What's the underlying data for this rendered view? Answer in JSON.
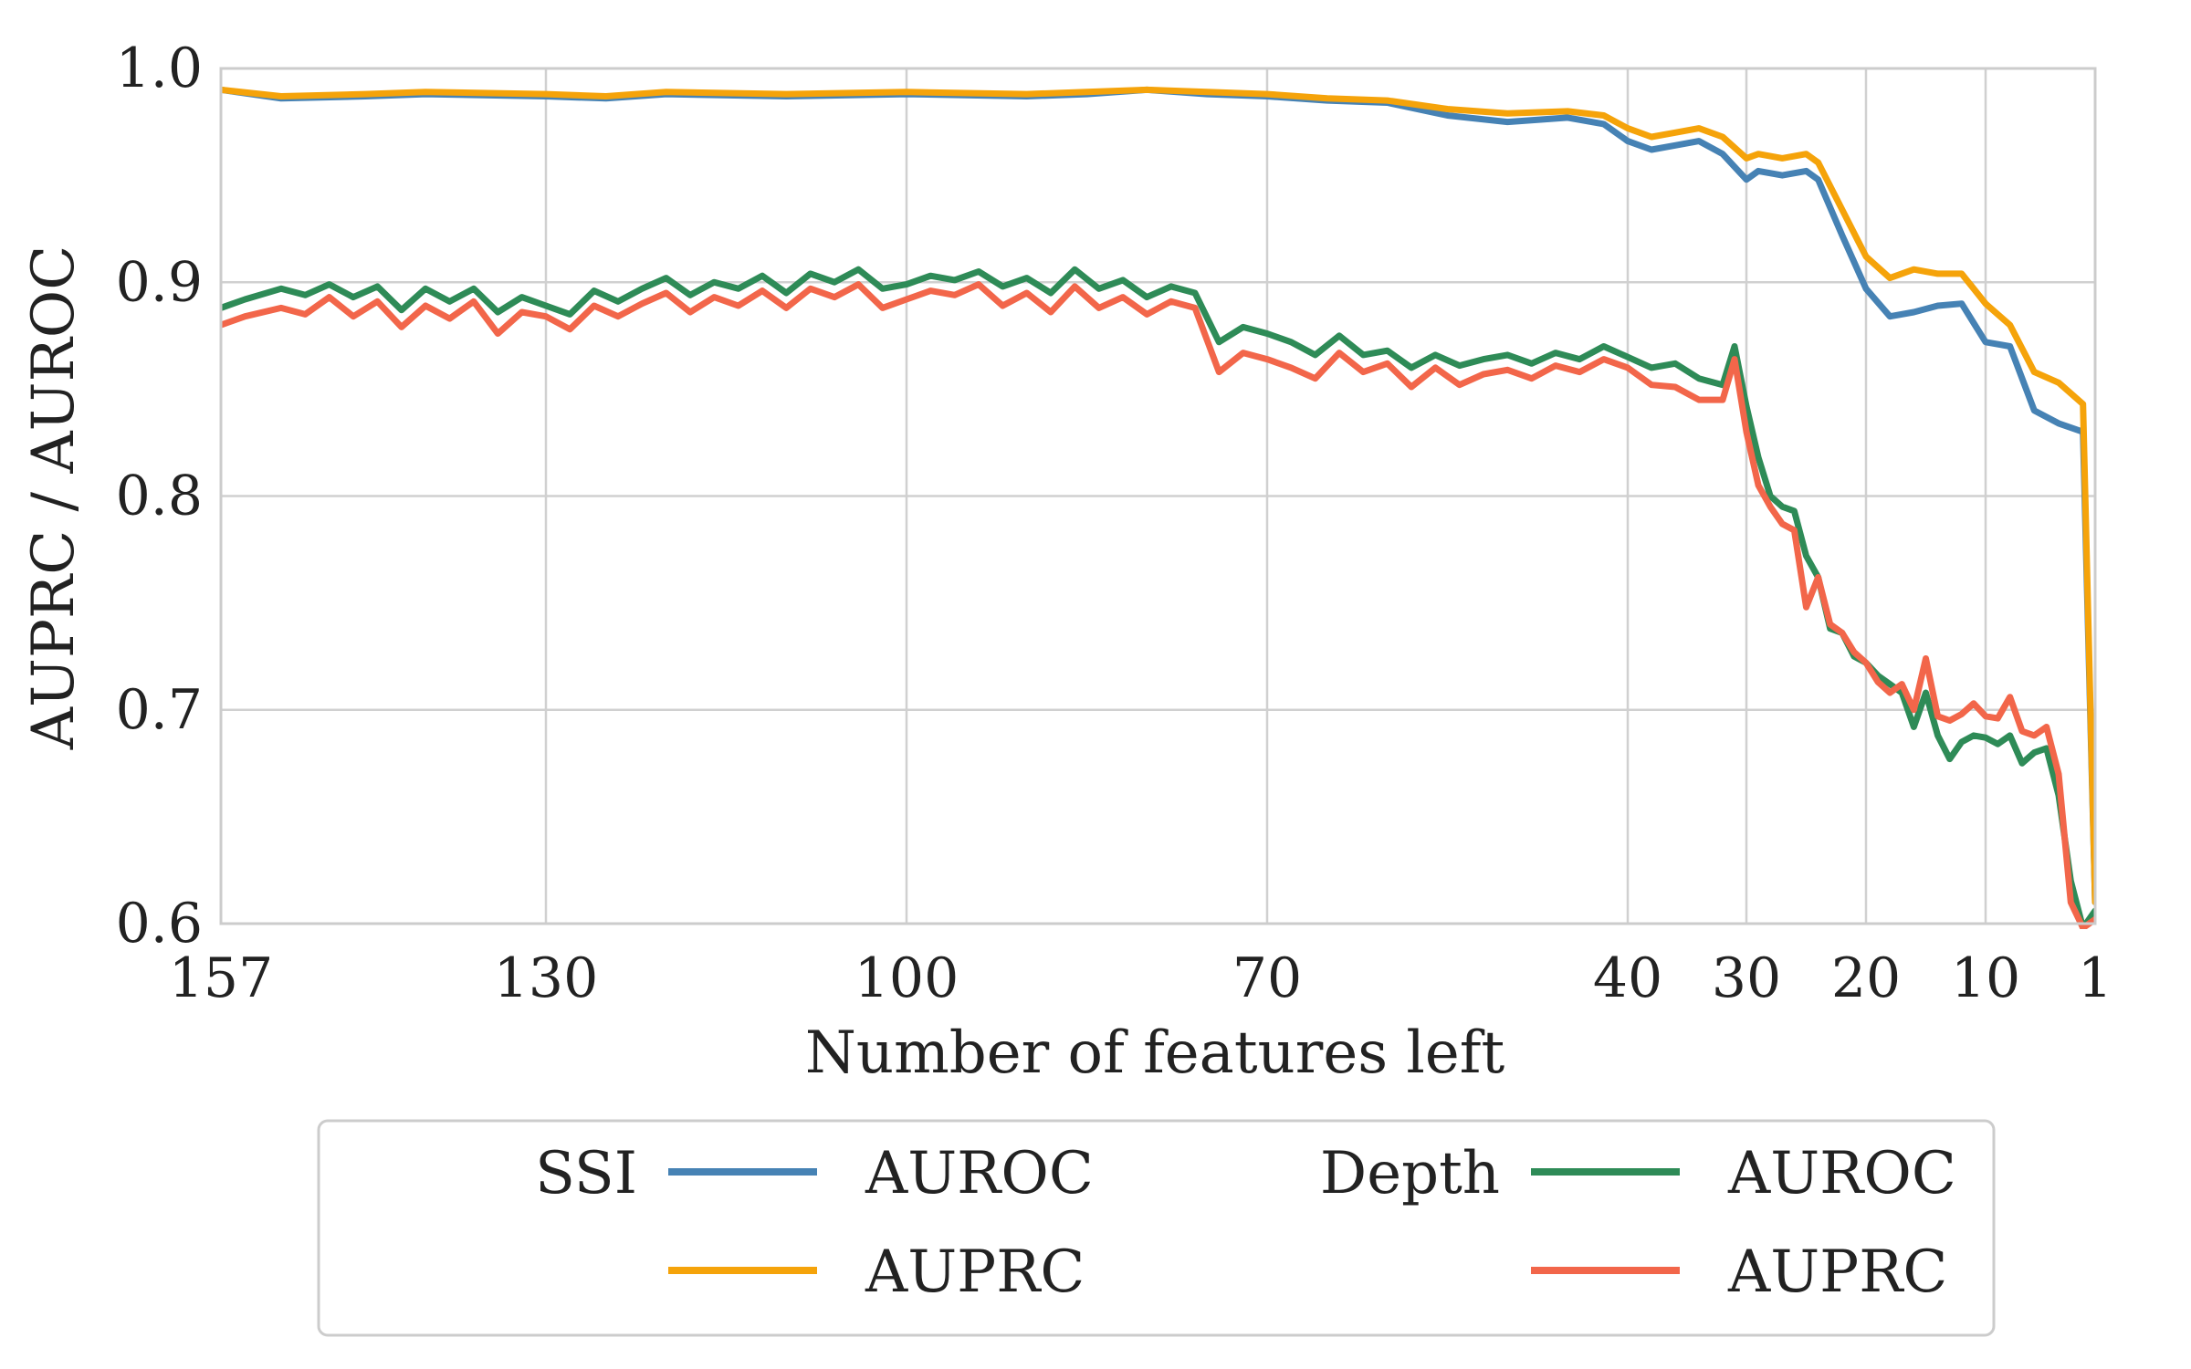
{
  "chart_data": {
    "type": "line",
    "title": "",
    "xlabel": "Number of features left",
    "ylabel": "AUPRC / AUROC",
    "xlim": [
      157,
      1
    ],
    "ylim": [
      0.6,
      1.0
    ],
    "x_ticks": [
      157,
      130,
      100,
      70,
      40,
      30,
      20,
      10,
      1
    ],
    "y_ticks": [
      0.6,
      0.7,
      0.8,
      0.9,
      1.0
    ],
    "y_tick_labels": [
      "0.6",
      "0.7",
      "0.8",
      "0.9",
      "1.0"
    ],
    "grid": true,
    "legend_position": "below",
    "legend": {
      "groups": [
        {
          "title": "SSI",
          "entries": [
            {
              "label": "AUROC",
              "series": 0
            },
            {
              "label": "AUPRC",
              "series": 1
            }
          ]
        },
        {
          "title": "Depth",
          "entries": [
            {
              "label": "AUROC",
              "series": 2
            },
            {
              "label": "AUPRC",
              "series": 3
            }
          ]
        }
      ]
    },
    "series": [
      {
        "name": "SSI AUROC",
        "color": "#4682b4",
        "points": [
          [
            157,
            0.99
          ],
          [
            152,
            0.986
          ],
          [
            145,
            0.987
          ],
          [
            140,
            0.988
          ],
          [
            130,
            0.987
          ],
          [
            125,
            0.986
          ],
          [
            120,
            0.988
          ],
          [
            110,
            0.987
          ],
          [
            100,
            0.988
          ],
          [
            90,
            0.987
          ],
          [
            85,
            0.988
          ],
          [
            80,
            0.99
          ],
          [
            75,
            0.988
          ],
          [
            70,
            0.987
          ],
          [
            65,
            0.985
          ],
          [
            60,
            0.984
          ],
          [
            55,
            0.978
          ],
          [
            50,
            0.975
          ],
          [
            45,
            0.977
          ],
          [
            42,
            0.974
          ],
          [
            40,
            0.966
          ],
          [
            38,
            0.962
          ],
          [
            36,
            0.964
          ],
          [
            34,
            0.966
          ],
          [
            32,
            0.96
          ],
          [
            30,
            0.948
          ],
          [
            29,
            0.952
          ],
          [
            27,
            0.95
          ],
          [
            25,
            0.952
          ],
          [
            24,
            0.948
          ],
          [
            22,
            0.922
          ],
          [
            20,
            0.897
          ],
          [
            18,
            0.884
          ],
          [
            16,
            0.886
          ],
          [
            14,
            0.889
          ],
          [
            12,
            0.89
          ],
          [
            10,
            0.872
          ],
          [
            8,
            0.87
          ],
          [
            6,
            0.84
          ],
          [
            4,
            0.834
          ],
          [
            2,
            0.83
          ],
          [
            1,
            0.61
          ]
        ]
      },
      {
        "name": "SSI AUPRC",
        "color": "#f5a30a",
        "points": [
          [
            157,
            0.99
          ],
          [
            152,
            0.987
          ],
          [
            145,
            0.988
          ],
          [
            140,
            0.989
          ],
          [
            130,
            0.988
          ],
          [
            125,
            0.987
          ],
          [
            120,
            0.989
          ],
          [
            110,
            0.988
          ],
          [
            100,
            0.989
          ],
          [
            90,
            0.988
          ],
          [
            85,
            0.989
          ],
          [
            80,
            0.99
          ],
          [
            75,
            0.989
          ],
          [
            70,
            0.988
          ],
          [
            65,
            0.986
          ],
          [
            60,
            0.985
          ],
          [
            55,
            0.981
          ],
          [
            50,
            0.979
          ],
          [
            45,
            0.98
          ],
          [
            42,
            0.978
          ],
          [
            40,
            0.972
          ],
          [
            38,
            0.968
          ],
          [
            36,
            0.97
          ],
          [
            34,
            0.972
          ],
          [
            32,
            0.968
          ],
          [
            30,
            0.958
          ],
          [
            29,
            0.96
          ],
          [
            27,
            0.958
          ],
          [
            25,
            0.96
          ],
          [
            24,
            0.956
          ],
          [
            22,
            0.934
          ],
          [
            20,
            0.912
          ],
          [
            18,
            0.902
          ],
          [
            16,
            0.906
          ],
          [
            14,
            0.904
          ],
          [
            12,
            0.904
          ],
          [
            10,
            0.89
          ],
          [
            8,
            0.88
          ],
          [
            6,
            0.858
          ],
          [
            4,
            0.853
          ],
          [
            2,
            0.843
          ],
          [
            1,
            0.61
          ]
        ]
      },
      {
        "name": "Depth AUROC",
        "color": "#2e8b57",
        "points": [
          [
            157,
            0.888
          ],
          [
            155,
            0.892
          ],
          [
            152,
            0.897
          ],
          [
            150,
            0.894
          ],
          [
            148,
            0.899
          ],
          [
            146,
            0.893
          ],
          [
            144,
            0.898
          ],
          [
            142,
            0.887
          ],
          [
            140,
            0.897
          ],
          [
            138,
            0.891
          ],
          [
            136,
            0.897
          ],
          [
            134,
            0.886
          ],
          [
            132,
            0.893
          ],
          [
            130,
            0.889
          ],
          [
            128,
            0.885
          ],
          [
            126,
            0.896
          ],
          [
            124,
            0.891
          ],
          [
            122,
            0.897
          ],
          [
            120,
            0.902
          ],
          [
            118,
            0.894
          ],
          [
            116,
            0.9
          ],
          [
            114,
            0.897
          ],
          [
            112,
            0.903
          ],
          [
            110,
            0.895
          ],
          [
            108,
            0.904
          ],
          [
            106,
            0.9
          ],
          [
            104,
            0.906
          ],
          [
            102,
            0.897
          ],
          [
            100,
            0.899
          ],
          [
            98,
            0.903
          ],
          [
            96,
            0.901
          ],
          [
            94,
            0.905
          ],
          [
            92,
            0.898
          ],
          [
            90,
            0.902
          ],
          [
            88,
            0.895
          ],
          [
            86,
            0.906
          ],
          [
            84,
            0.897
          ],
          [
            82,
            0.901
          ],
          [
            80,
            0.893
          ],
          [
            78,
            0.898
          ],
          [
            76,
            0.895
          ],
          [
            74,
            0.872
          ],
          [
            72,
            0.879
          ],
          [
            70,
            0.876
          ],
          [
            68,
            0.872
          ],
          [
            66,
            0.866
          ],
          [
            64,
            0.875
          ],
          [
            62,
            0.866
          ],
          [
            60,
            0.868
          ],
          [
            58,
            0.86
          ],
          [
            56,
            0.866
          ],
          [
            54,
            0.861
          ],
          [
            52,
            0.864
          ],
          [
            50,
            0.866
          ],
          [
            48,
            0.862
          ],
          [
            46,
            0.867
          ],
          [
            44,
            0.864
          ],
          [
            42,
            0.87
          ],
          [
            40,
            0.865
          ],
          [
            38,
            0.86
          ],
          [
            36,
            0.862
          ],
          [
            34,
            0.855
          ],
          [
            32,
            0.852
          ],
          [
            31,
            0.87
          ],
          [
            30,
            0.842
          ],
          [
            29,
            0.818
          ],
          [
            28,
            0.8
          ],
          [
            27,
            0.795
          ],
          [
            26,
            0.793
          ],
          [
            25,
            0.772
          ],
          [
            24,
            0.762
          ],
          [
            23,
            0.738
          ],
          [
            22,
            0.736
          ],
          [
            21,
            0.725
          ],
          [
            20,
            0.722
          ],
          [
            19,
            0.716
          ],
          [
            18,
            0.712
          ],
          [
            17,
            0.708
          ],
          [
            16,
            0.692
          ],
          [
            15,
            0.708
          ],
          [
            14,
            0.688
          ],
          [
            13,
            0.677
          ],
          [
            12,
            0.685
          ],
          [
            11,
            0.688
          ],
          [
            10,
            0.687
          ],
          [
            9,
            0.684
          ],
          [
            8,
            0.688
          ],
          [
            7,
            0.675
          ],
          [
            6,
            0.68
          ],
          [
            5,
            0.682
          ],
          [
            4,
            0.66
          ],
          [
            3,
            0.62
          ],
          [
            2,
            0.598
          ],
          [
            1,
            0.606
          ]
        ]
      },
      {
        "name": "Depth AUPRC",
        "color": "#f2664a",
        "points": [
          [
            157,
            0.88
          ],
          [
            155,
            0.884
          ],
          [
            152,
            0.888
          ],
          [
            150,
            0.885
          ],
          [
            148,
            0.893
          ],
          [
            146,
            0.884
          ],
          [
            144,
            0.891
          ],
          [
            142,
            0.879
          ],
          [
            140,
            0.889
          ],
          [
            138,
            0.883
          ],
          [
            136,
            0.891
          ],
          [
            134,
            0.876
          ],
          [
            132,
            0.886
          ],
          [
            130,
            0.884
          ],
          [
            128,
            0.878
          ],
          [
            126,
            0.889
          ],
          [
            124,
            0.884
          ],
          [
            122,
            0.89
          ],
          [
            120,
            0.895
          ],
          [
            118,
            0.886
          ],
          [
            116,
            0.893
          ],
          [
            114,
            0.889
          ],
          [
            112,
            0.896
          ],
          [
            110,
            0.888
          ],
          [
            108,
            0.897
          ],
          [
            106,
            0.893
          ],
          [
            104,
            0.899
          ],
          [
            102,
            0.888
          ],
          [
            100,
            0.892
          ],
          [
            98,
            0.896
          ],
          [
            96,
            0.894
          ],
          [
            94,
            0.899
          ],
          [
            92,
            0.889
          ],
          [
            90,
            0.895
          ],
          [
            88,
            0.886
          ],
          [
            86,
            0.898
          ],
          [
            84,
            0.888
          ],
          [
            82,
            0.893
          ],
          [
            80,
            0.885
          ],
          [
            78,
            0.891
          ],
          [
            76,
            0.888
          ],
          [
            74,
            0.858
          ],
          [
            72,
            0.867
          ],
          [
            70,
            0.864
          ],
          [
            68,
            0.86
          ],
          [
            66,
            0.855
          ],
          [
            64,
            0.867
          ],
          [
            62,
            0.858
          ],
          [
            60,
            0.862
          ],
          [
            58,
            0.851
          ],
          [
            56,
            0.86
          ],
          [
            54,
            0.852
          ],
          [
            52,
            0.857
          ],
          [
            50,
            0.859
          ],
          [
            48,
            0.855
          ],
          [
            46,
            0.861
          ],
          [
            44,
            0.858
          ],
          [
            42,
            0.864
          ],
          [
            40,
            0.86
          ],
          [
            38,
            0.852
          ],
          [
            36,
            0.851
          ],
          [
            34,
            0.845
          ],
          [
            32,
            0.845
          ],
          [
            31,
            0.864
          ],
          [
            30,
            0.83
          ],
          [
            29,
            0.805
          ],
          [
            28,
            0.795
          ],
          [
            27,
            0.787
          ],
          [
            26,
            0.784
          ],
          [
            25,
            0.748
          ],
          [
            24,
            0.762
          ],
          [
            23,
            0.74
          ],
          [
            22,
            0.736
          ],
          [
            21,
            0.727
          ],
          [
            20,
            0.722
          ],
          [
            19,
            0.713
          ],
          [
            18,
            0.708
          ],
          [
            17,
            0.712
          ],
          [
            16,
            0.7
          ],
          [
            15,
            0.724
          ],
          [
            14,
            0.697
          ],
          [
            13,
            0.695
          ],
          [
            12,
            0.698
          ],
          [
            11,
            0.703
          ],
          [
            10,
            0.697
          ],
          [
            9,
            0.696
          ],
          [
            8,
            0.706
          ],
          [
            7,
            0.69
          ],
          [
            6,
            0.688
          ],
          [
            5,
            0.692
          ],
          [
            4,
            0.67
          ],
          [
            3,
            0.61
          ],
          [
            2,
            0.598
          ],
          [
            1,
            0.602
          ]
        ]
      }
    ]
  }
}
